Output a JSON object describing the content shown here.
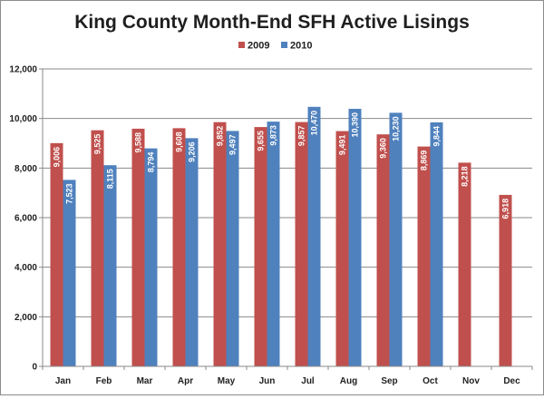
{
  "chart_data": {
    "type": "bar",
    "title": "King County Month-End SFH Active Lisings",
    "xlabel": "",
    "ylabel": "",
    "categories": [
      "Jan",
      "Feb",
      "Mar",
      "Apr",
      "May",
      "Jun",
      "Jul",
      "Aug",
      "Sep",
      "Oct",
      "Nov",
      "Dec"
    ],
    "series": [
      {
        "name": "2009",
        "color": "#c0504d",
        "values": [
          9006,
          9525,
          9588,
          9608,
          9852,
          9655,
          9857,
          9491,
          9360,
          8869,
          8218,
          6918
        ],
        "labels": [
          "9,006",
          "9,525",
          "9,588",
          "9,608",
          "9,852",
          "9,655",
          "9,857",
          "9,491",
          "9,360",
          "8,869",
          "8,218",
          "6,918"
        ]
      },
      {
        "name": "2010",
        "color": "#4f81bd",
        "values": [
          7523,
          8115,
          8794,
          9206,
          9497,
          9873,
          10470,
          10390,
          10230,
          9844,
          null,
          null
        ],
        "labels": [
          "7,523",
          "8,115",
          "8,794",
          "9,206",
          "9,497",
          "9,873",
          "10,470",
          "10,390",
          "10,230",
          "9,844",
          "",
          ""
        ]
      }
    ],
    "ylim": [
      0,
      12000
    ],
    "yticks": [
      0,
      2000,
      4000,
      6000,
      8000,
      10000,
      12000
    ],
    "ytick_labels": [
      "0",
      "2,000",
      "4,000",
      "6,000",
      "8,000",
      "10,000",
      "12,000"
    ],
    "grid": true,
    "legend_position": "top-center"
  }
}
